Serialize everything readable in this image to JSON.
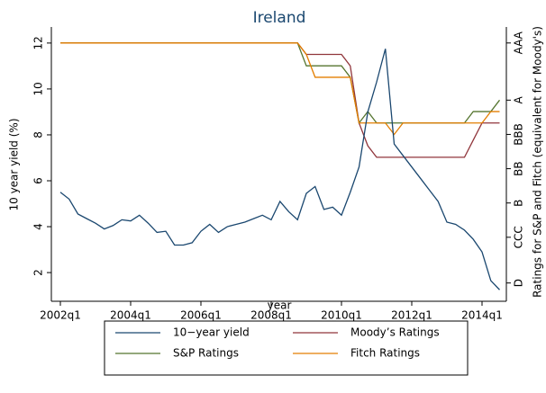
{
  "chart_data": {
    "type": "line",
    "title": "Ireland",
    "xlabel": "year",
    "ylabel": "10 year yield (%)",
    "y2label": "Ratings for S&P and Fitch (equivalent for Moody's)",
    "categories": [
      "2002q1",
      null,
      null,
      null,
      null,
      null,
      null,
      null,
      "2004q1",
      null,
      null,
      null,
      null,
      null,
      null,
      null,
      "2006q1",
      null,
      null,
      null,
      null,
      null,
      null,
      null,
      "2008q1",
      null,
      null,
      null,
      null,
      null,
      null,
      null,
      "2010q1",
      null,
      null,
      null,
      null,
      null,
      null,
      null,
      "2012q1",
      null,
      null,
      null,
      null,
      null,
      null,
      null,
      "2014q1",
      null,
      null
    ],
    "ylim": [
      0.75,
      12.7
    ],
    "yticks": [
      2,
      4,
      6,
      8,
      10,
      12
    ],
    "y2lim": [
      -1.6,
      22.4
    ],
    "y2ticks": [
      {
        "value": 0,
        "label": "D"
      },
      {
        "value": 4,
        "label": "CCC"
      },
      {
        "value": 7,
        "label": "B"
      },
      {
        "value": 10,
        "label": "BB"
      },
      {
        "value": 13,
        "label": "BBB"
      },
      {
        "value": 16,
        "label": "A"
      },
      {
        "value": 21,
        "label": "AAA"
      }
    ],
    "legend": "bottom",
    "series": [
      {
        "name": "10−year yield",
        "color": "#1a476f",
        "values": [
          5.5,
          5.2,
          4.55,
          4.35,
          4.15,
          3.9,
          4.05,
          4.3,
          4.25,
          4.5,
          4.15,
          3.75,
          3.8,
          3.2,
          3.2,
          3.3,
          3.8,
          4.1,
          3.75,
          4.0,
          4.1,
          4.2,
          4.35,
          4.5,
          4.3,
          5.1,
          4.65,
          4.3,
          5.45,
          5.75,
          4.75,
          4.85,
          4.5,
          5.5,
          6.6,
          9.0,
          10.3,
          11.75,
          7.6,
          7.1,
          6.6,
          6.1,
          5.6,
          5.1,
          4.2,
          4.1,
          3.85,
          3.45,
          2.9,
          1.65,
          1.25
        ]
      },
      {
        "name": "Moody’s Ratings",
        "color": "#90353b",
        "axis": "y2",
        "values": [
          21,
          21,
          21,
          21,
          21,
          21,
          21,
          21,
          21,
          21,
          21,
          21,
          21,
          21,
          21,
          21,
          21,
          21,
          21,
          21,
          21,
          21,
          21,
          21,
          21,
          21,
          21,
          21,
          20,
          20,
          20,
          20,
          20,
          19,
          14,
          12,
          11,
          11,
          11,
          11,
          11,
          11,
          11,
          11,
          11,
          11,
          11,
          12.5,
          14,
          14,
          14
        ]
      },
      {
        "name": "S&P Ratings",
        "color": "#55752f",
        "axis": "y2",
        "values": [
          21,
          21,
          21,
          21,
          21,
          21,
          21,
          21,
          21,
          21,
          21,
          21,
          21,
          21,
          21,
          21,
          21,
          21,
          21,
          21,
          21,
          21,
          21,
          21,
          21,
          21,
          21,
          21,
          19,
          19,
          19,
          19,
          19,
          18,
          14,
          15,
          14,
          14,
          14,
          14,
          14,
          14,
          14,
          14,
          14,
          14,
          14,
          15,
          15,
          15,
          16
        ]
      },
      {
        "name": "Fitch Ratings",
        "color": "#e37e00",
        "axis": "y2",
        "values": [
          21,
          21,
          21,
          21,
          21,
          21,
          21,
          21,
          21,
          21,
          21,
          21,
          21,
          21,
          21,
          21,
          21,
          21,
          21,
          21,
          21,
          21,
          21,
          21,
          21,
          21,
          21,
          21,
          20,
          18,
          18,
          18,
          18,
          18,
          14,
          14,
          14,
          14,
          13,
          14,
          14,
          14,
          14,
          14,
          14,
          14,
          14,
          14,
          14,
          15,
          15
        ]
      }
    ]
  }
}
